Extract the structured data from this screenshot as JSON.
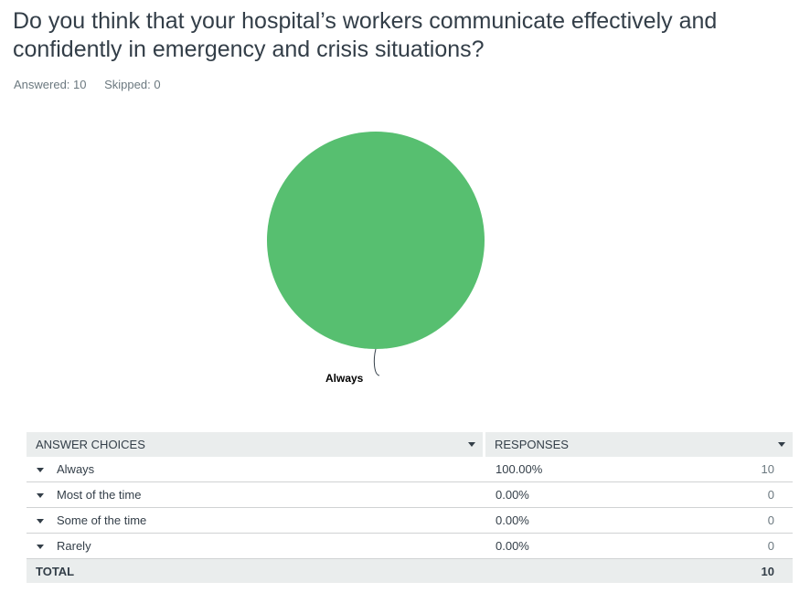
{
  "question": {
    "title": "Do you think that your hospital’s workers communicate effectively and confidently in emergency and crisis situations?",
    "answered_label": "Answered: 10",
    "skipped_label": "Skipped: 0"
  },
  "colors": {
    "slice_always": "#57bf70",
    "leader_line": "#333e48",
    "header_bg": "#eaeded"
  },
  "chart_data": {
    "type": "pie",
    "title": "",
    "categories": [
      "Always",
      "Most of the time",
      "Some of the time",
      "Rarely"
    ],
    "values": [
      100,
      0,
      0,
      0
    ],
    "visible_labels": [
      "Always"
    ]
  },
  "table": {
    "headers": {
      "choices": "ANSWER CHOICES",
      "responses": "RESPONSES"
    },
    "rows": [
      {
        "choice": "Always",
        "percent": "100.00%",
        "count": "10"
      },
      {
        "choice": "Most of the time",
        "percent": "0.00%",
        "count": "0"
      },
      {
        "choice": "Some of the time",
        "percent": "0.00%",
        "count": "0"
      },
      {
        "choice": "Rarely",
        "percent": "0.00%",
        "count": "0"
      }
    ],
    "total": {
      "label": "TOTAL",
      "value": "10"
    }
  }
}
